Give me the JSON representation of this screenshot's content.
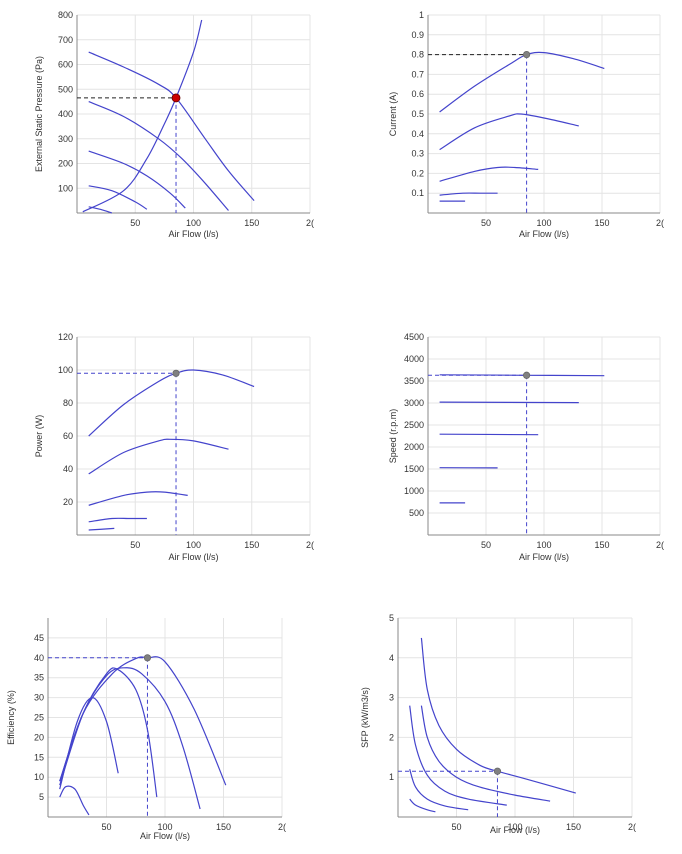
{
  "colors": {
    "curve": "#4444cc",
    "op_point_main": "#cc0000",
    "op_point": "#808080",
    "grid": "#e4e4e4"
  },
  "chart_data": [
    {
      "type": "line",
      "xlabel": "Air Flow (l/s)",
      "ylabel": "External Static Pressure (Pa)",
      "xlim": [
        0,
        200
      ],
      "ylim": [
        0,
        800
      ],
      "xticks": [
        "50",
        "100",
        "150",
        "2("
      ],
      "yticks": [
        "100",
        "200",
        "300",
        "400",
        "500",
        "600",
        "700",
        "800"
      ],
      "series": [
        {
          "x": [
            10,
            40,
            70,
            85,
            110,
            130,
            152
          ],
          "y": [
            650,
            590,
            520,
            465,
            300,
            170,
            50
          ]
        },
        {
          "x": [
            10,
            40,
            70,
            90,
            110,
            130
          ],
          "y": [
            450,
            390,
            300,
            220,
            120,
            10
          ]
        },
        {
          "x": [
            10,
            40,
            60,
            80,
            93
          ],
          "y": [
            250,
            200,
            150,
            80,
            20
          ]
        },
        {
          "x": [
            10,
            30,
            50,
            60
          ],
          "y": [
            110,
            90,
            45,
            15
          ]
        },
        {
          "x": [
            10,
            20,
            30
          ],
          "y": [
            25,
            15,
            0
          ]
        },
        {
          "x": [
            5,
            40,
            60,
            75,
            85,
            100,
            107
          ],
          "y": [
            5,
            90,
            220,
            360,
            465,
            650,
            780
          ]
        }
      ],
      "operating_point": {
        "x": 85,
        "y": 465
      }
    },
    {
      "type": "line",
      "xlabel": "Air Flow (l/s)",
      "ylabel": "Current (A)",
      "xlim": [
        0,
        200
      ],
      "ylim": [
        0,
        1
      ],
      "xticks": [
        "50",
        "100",
        "150",
        "2("
      ],
      "yticks": [
        "0.1",
        "0.2",
        "0.3",
        "0.4",
        "0.5",
        "0.6",
        "0.7",
        "0.8",
        "0.9",
        "1"
      ],
      "series": [
        {
          "x": [
            10,
            40,
            70,
            85,
            100,
            125,
            152
          ],
          "y": [
            0.51,
            0.64,
            0.75,
            0.8,
            0.81,
            0.78,
            0.73
          ]
        },
        {
          "x": [
            10,
            40,
            70,
            80,
            100,
            130
          ],
          "y": [
            0.32,
            0.43,
            0.49,
            0.5,
            0.48,
            0.44
          ]
        },
        {
          "x": [
            10,
            40,
            60,
            75,
            95
          ],
          "y": [
            0.16,
            0.21,
            0.23,
            0.23,
            0.22
          ]
        },
        {
          "x": [
            10,
            30,
            45,
            60
          ],
          "y": [
            0.09,
            0.1,
            0.1,
            0.1
          ]
        },
        {
          "x": [
            10,
            32
          ],
          "y": [
            0.06,
            0.06
          ]
        }
      ],
      "operating_point": {
        "x": 85,
        "y": 0.8
      }
    },
    {
      "type": "line",
      "xlabel": "Air Flow (l/s)",
      "ylabel": "Power (W)",
      "xlim": [
        0,
        200
      ],
      "ylim": [
        0,
        120
      ],
      "xticks": [
        "50",
        "100",
        "150",
        "2("
      ],
      "yticks": [
        "20",
        "40",
        "60",
        "80",
        "100",
        "120"
      ],
      "series": [
        {
          "x": [
            10,
            40,
            70,
            85,
            100,
            125,
            152
          ],
          "y": [
            60,
            79,
            93,
            98,
            100,
            97,
            90
          ]
        },
        {
          "x": [
            10,
            40,
            70,
            80,
            100,
            130
          ],
          "y": [
            37,
            50,
            57,
            58,
            57,
            52
          ]
        },
        {
          "x": [
            10,
            40,
            60,
            75,
            95
          ],
          "y": [
            18,
            24,
            26,
            26,
            24
          ]
        },
        {
          "x": [
            10,
            30,
            45,
            60
          ],
          "y": [
            8,
            10,
            10,
            10
          ]
        },
        {
          "x": [
            10,
            32
          ],
          "y": [
            3,
            4
          ]
        }
      ],
      "operating_point": {
        "x": 85,
        "y": 98
      }
    },
    {
      "type": "line",
      "xlabel": "Air Flow (l/s)",
      "ylabel": "Speed (r.p.m)",
      "xlim": [
        0,
        200
      ],
      "ylim": [
        0,
        4500
      ],
      "xticks": [
        "50",
        "100",
        "150",
        "2("
      ],
      "yticks": [
        "500",
        "1000",
        "1500",
        "2000",
        "2500",
        "3000",
        "3500",
        "4000",
        "4500"
      ],
      "series": [
        {
          "x": [
            10,
            85,
            152
          ],
          "y": [
            3640,
            3630,
            3620
          ]
        },
        {
          "x": [
            10,
            130
          ],
          "y": [
            3020,
            3010
          ]
        },
        {
          "x": [
            10,
            95
          ],
          "y": [
            2290,
            2280
          ]
        },
        {
          "x": [
            10,
            60
          ],
          "y": [
            1530,
            1525
          ]
        },
        {
          "x": [
            10,
            32
          ],
          "y": [
            730,
            730
          ]
        }
      ],
      "operating_point": {
        "x": 85,
        "y": 3630
      }
    },
    {
      "type": "line",
      "xlabel": "Air Flow (l/s)",
      "ylabel": "Efficiency (%)",
      "xlim": [
        0,
        200
      ],
      "ylim": [
        0,
        50
      ],
      "xticks": [
        "50",
        "100",
        "150",
        "2("
      ],
      "yticks": [
        "5",
        "10",
        "15",
        "20",
        "25",
        "30",
        "35",
        "40",
        "45"
      ],
      "series": [
        {
          "x": [
            10,
            30,
            55,
            75,
            85,
            100,
            125,
            152
          ],
          "y": [
            9,
            26,
            36,
            39.8,
            40,
            39,
            27,
            8
          ]
        },
        {
          "x": [
            10,
            30,
            50,
            65,
            80,
            100,
            115,
            130
          ],
          "y": [
            9,
            26,
            35.5,
            37.5,
            36,
            29,
            18,
            2
          ]
        },
        {
          "x": [
            10,
            30,
            50,
            60,
            75,
            85,
            93
          ],
          "y": [
            8,
            26,
            36,
            37,
            32,
            22,
            5
          ]
        },
        {
          "x": [
            10,
            25,
            38,
            50,
            60
          ],
          "y": [
            7,
            24,
            30,
            24,
            11
          ]
        },
        {
          "x": [
            10,
            15,
            23,
            30,
            35
          ],
          "y": [
            5,
            7.6,
            7,
            3,
            0.5
          ]
        }
      ],
      "operating_point": {
        "x": 85,
        "y": 40
      }
    },
    {
      "type": "line",
      "xlabel": "Air Flow (l/s)",
      "ylabel": "SFP (kW/m3/s)",
      "xlim": [
        0,
        200
      ],
      "ylim": [
        0,
        5
      ],
      "xticks": [
        "50",
        "100",
        "150",
        "2("
      ],
      "yticks": [
        "1",
        "2",
        "3",
        "4",
        "5"
      ],
      "series": [
        {
          "x": [
            20,
            25,
            35,
            50,
            70,
            85,
            110,
            152
          ],
          "y": [
            4.5,
            3.2,
            2.3,
            1.7,
            1.3,
            1.15,
            0.95,
            0.6
          ]
        },
        {
          "x": [
            20,
            25,
            35,
            50,
            70,
            100,
            130
          ],
          "y": [
            2.8,
            2.0,
            1.4,
            1.0,
            0.75,
            0.55,
            0.4
          ]
        },
        {
          "x": [
            10,
            15,
            25,
            40,
            60,
            93
          ],
          "y": [
            2.8,
            1.8,
            1.05,
            0.65,
            0.45,
            0.3
          ]
        },
        {
          "x": [
            10,
            15,
            25,
            40,
            60
          ],
          "y": [
            1.2,
            0.75,
            0.45,
            0.28,
            0.18
          ]
        },
        {
          "x": [
            10,
            15,
            25,
            32
          ],
          "y": [
            0.45,
            0.3,
            0.18,
            0.13
          ]
        }
      ],
      "operating_point": {
        "x": 85,
        "y": 1.15
      }
    }
  ]
}
